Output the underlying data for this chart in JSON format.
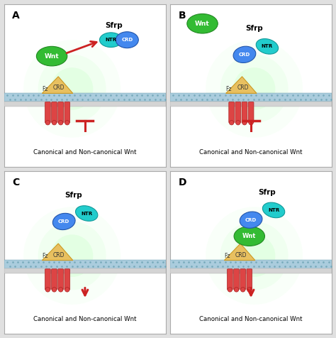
{
  "bg_color": "#e0e0e0",
  "panel_bg": "#ffffff",
  "border_color": "#aaaaaa",
  "mem_top_color": "#aaccdd",
  "mem_bot_color": "#d4d4d4",
  "fz_helix_color": "#dd4444",
  "fz_helix_edge": "#aa2222",
  "fz_crd_color": "#e8c060",
  "fz_crd_edge": "#cc9922",
  "wnt_fill": "#33bb33",
  "wnt_edge": "#228822",
  "wnt_text": "#ffffff",
  "ntr_fill": "#22cccc",
  "ntr_edge": "#119999",
  "ntr_text": "#000000",
  "crd_fill": "#4488ee",
  "crd_edge": "#2255aa",
  "crd_text": "#ffffff",
  "sfrp_label_color": "#000000",
  "inhibit_color": "#cc2222",
  "activate_color": "#cc2222",
  "glow_color": "#99ff99",
  "caption_text": "Canonical and Non-canonical Wnt",
  "panel_labels": [
    "A",
    "B",
    "C",
    "D"
  ]
}
